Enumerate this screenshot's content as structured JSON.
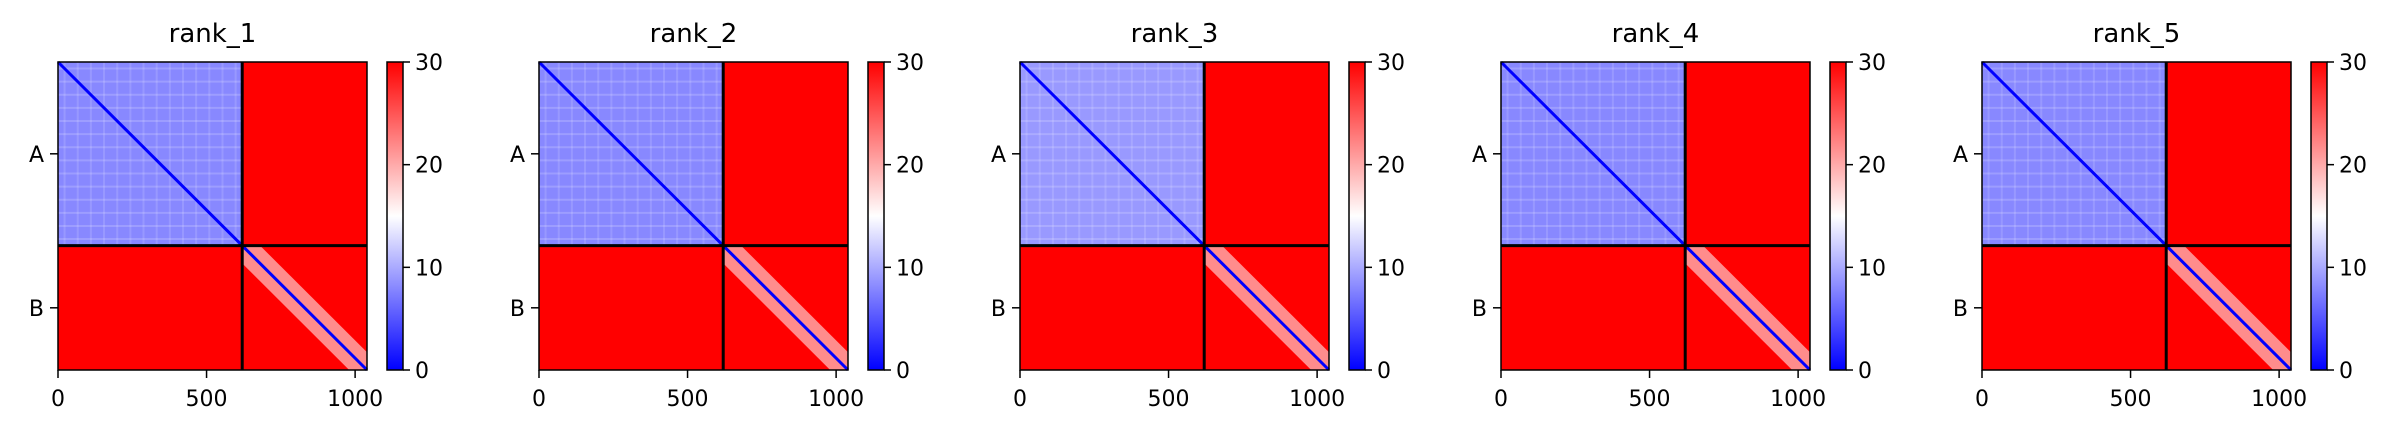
{
  "chart_data": [
    {
      "type": "heatmap",
      "title": "rank_1",
      "chains": [
        {
          "label": "A",
          "start": 0,
          "end": 620
        },
        {
          "label": "B",
          "start": 620,
          "end": 1040
        }
      ],
      "xlim": [
        0,
        1040
      ],
      "xticks": [
        0,
        500,
        1000
      ],
      "colorbar": {
        "min": 0,
        "max": 30,
        "ticks": [
          0,
          10,
          20,
          30
        ],
        "colors": [
          "#0000ff",
          "#ffffff",
          "#ff0000"
        ]
      },
      "blocks": {
        "AA": 8,
        "AB": 30,
        "BA": 30,
        "BB": 30
      },
      "diagonal_value": 0
    },
    {
      "type": "heatmap",
      "title": "rank_2",
      "chains": [
        {
          "label": "A",
          "start": 0,
          "end": 620
        },
        {
          "label": "B",
          "start": 620,
          "end": 1040
        }
      ],
      "xlim": [
        0,
        1040
      ],
      "xticks": [
        0,
        500,
        1000
      ],
      "colorbar": {
        "min": 0,
        "max": 30,
        "ticks": [
          0,
          10,
          20,
          30
        ],
        "colors": [
          "#0000ff",
          "#ffffff",
          "#ff0000"
        ]
      },
      "blocks": {
        "AA": 8,
        "AB": 30,
        "BA": 30,
        "BB": 30
      },
      "diagonal_value": 0
    },
    {
      "type": "heatmap",
      "title": "rank_3",
      "chains": [
        {
          "label": "A",
          "start": 0,
          "end": 620
        },
        {
          "label": "B",
          "start": 620,
          "end": 1040
        }
      ],
      "xlim": [
        0,
        1040
      ],
      "xticks": [
        0,
        500,
        1000
      ],
      "colorbar": {
        "min": 0,
        "max": 30,
        "ticks": [
          0,
          10,
          20,
          30
        ],
        "colors": [
          "#0000ff",
          "#ffffff",
          "#ff0000"
        ]
      },
      "blocks": {
        "AA": 9,
        "AB": 30,
        "BA": 30,
        "BB": 30
      },
      "diagonal_value": 0
    },
    {
      "type": "heatmap",
      "title": "rank_4",
      "chains": [
        {
          "label": "A",
          "start": 0,
          "end": 620
        },
        {
          "label": "B",
          "start": 620,
          "end": 1040
        }
      ],
      "xlim": [
        0,
        1040
      ],
      "xticks": [
        0,
        500,
        1000
      ],
      "colorbar": {
        "min": 0,
        "max": 30,
        "ticks": [
          0,
          10,
          20,
          30
        ],
        "colors": [
          "#0000ff",
          "#ffffff",
          "#ff0000"
        ]
      },
      "blocks": {
        "AA": 8,
        "AB": 30,
        "BA": 30,
        "BB": 30
      },
      "diagonal_value": 0
    },
    {
      "type": "heatmap",
      "title": "rank_5",
      "chains": [
        {
          "label": "A",
          "start": 0,
          "end": 620
        },
        {
          "label": "B",
          "start": 620,
          "end": 1040
        }
      ],
      "xlim": [
        0,
        1040
      ],
      "xticks": [
        0,
        500,
        1000
      ],
      "colorbar": {
        "min": 0,
        "max": 30,
        "ticks": [
          0,
          10,
          20,
          30
        ],
        "colors": [
          "#0000ff",
          "#ffffff",
          "#ff0000"
        ]
      },
      "blocks": {
        "AA": 8,
        "AB": 30,
        "BA": 30,
        "BB": 30
      },
      "diagonal_value": 0
    }
  ]
}
